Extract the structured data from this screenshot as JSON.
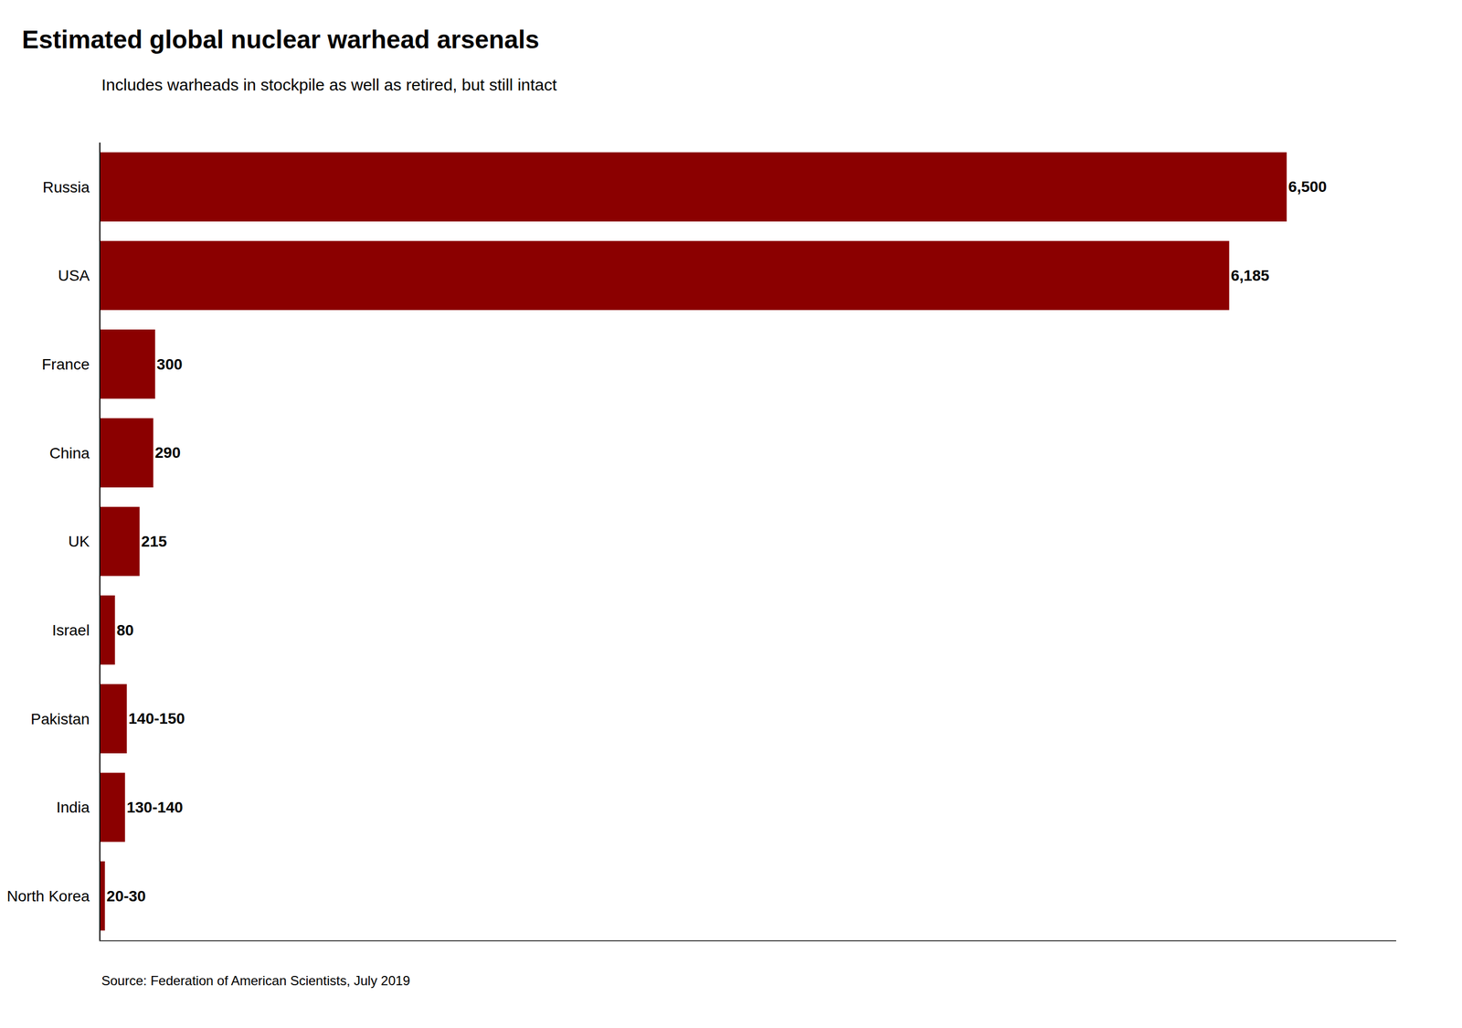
{
  "chart_data": {
    "type": "bar",
    "orientation": "horizontal",
    "title": "Estimated global nuclear warhead arsenals",
    "subtitle": "Includes warheads in stockpile as well as retired, but still intact",
    "source": "Source: Federation of American Scientists, July 2019",
    "categories": [
      "Russia",
      "USA",
      "France",
      "China",
      "UK",
      "Israel",
      "Pakistan",
      "India",
      "North Korea"
    ],
    "values": [
      6500,
      6185,
      300,
      290,
      215,
      80,
      145,
      135,
      25
    ],
    "value_labels": [
      "6,500",
      "6,185",
      "300",
      "290",
      "215",
      "80",
      "140-150",
      "130-140",
      "20-30"
    ],
    "color": "#8B0000",
    "data_labels": true,
    "xlim": [
      0,
      7100
    ],
    "tick_labels": "y",
    "grid": false
  }
}
